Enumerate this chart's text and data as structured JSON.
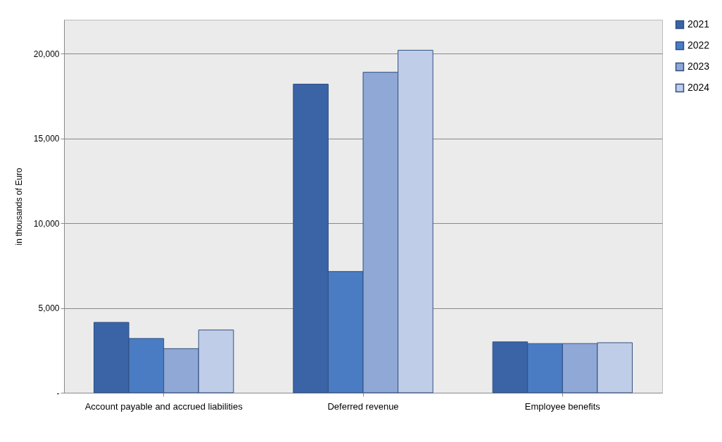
{
  "chart_data": {
    "type": "bar",
    "ylabel": "in thousands of Euro",
    "categories": [
      "Account payable and accrued liabilities",
      "Deferred revenue",
      "Employee benefits"
    ],
    "series": [
      {
        "name": "2021",
        "color": "#3a64a6",
        "values": [
          4150,
          18200,
          3000
        ]
      },
      {
        "name": "2022",
        "color": "#4a7cc4",
        "values": [
          3200,
          7150,
          2900
        ]
      },
      {
        "name": "2023",
        "color": "#8fa8d6",
        "values": [
          2600,
          18900,
          2900
        ]
      },
      {
        "name": "2024",
        "color": "#c0cde8",
        "values": [
          3700,
          20200,
          2950
        ]
      }
    ],
    "ylim": [
      0,
      22000
    ],
    "yticks": [
      {
        "value": 0,
        "label": "-"
      },
      {
        "value": 5000,
        "label": "5,000"
      },
      {
        "value": 10000,
        "label": "10,000"
      },
      {
        "value": 15000,
        "label": "15,000"
      },
      {
        "value": 20000,
        "label": "20,000"
      }
    ],
    "grid": "y",
    "legend": "right"
  }
}
